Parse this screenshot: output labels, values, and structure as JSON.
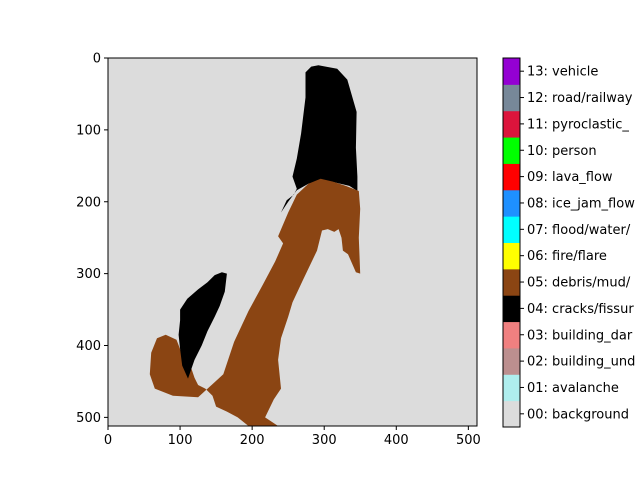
{
  "chart_data": {
    "type": "heatmap",
    "title": "",
    "xlabel": "",
    "ylabel": "",
    "xlim": [
      0,
      512
    ],
    "ylim": [
      512,
      0
    ],
    "x_ticks": [
      "0",
      "100",
      "200",
      "300",
      "400",
      "500"
    ],
    "y_ticks": [
      "0",
      "100",
      "200",
      "300",
      "400",
      "500"
    ],
    "grid": false,
    "colorbar": {
      "placement": "right",
      "classes": [
        {
          "label": "00: background",
          "color": "#DCDCDC"
        },
        {
          "label": "01: avalanche",
          "color": "#AFEEEE"
        },
        {
          "label": "02: building_und",
          "color": "#BC8F8F"
        },
        {
          "label": "03: building_dar",
          "color": "#F08080"
        },
        {
          "label": "04: cracks/fissur",
          "color": "#000000"
        },
        {
          "label": "05: debris/mud/",
          "color": "#8B4513"
        },
        {
          "label": "06: fire/flare",
          "color": "#FFFF00"
        },
        {
          "label": "07: flood/water/",
          "color": "#00FFFF"
        },
        {
          "label": "08: ice_jam_flow",
          "color": "#1E90FF"
        },
        {
          "label": "09: lava_flow",
          "color": "#FF0000"
        },
        {
          "label": "10: person",
          "color": "#00FF00"
        },
        {
          "label": "11: pyroclastic_",
          "color": "#DC143C"
        },
        {
          "label": "12: road/railway",
          "color": "#778899"
        },
        {
          "label": "13: vehicle",
          "color": "#9400D3"
        }
      ]
    },
    "regions": [
      {
        "class": "04: cracks/fissur",
        "polygon": [
          [
            240,
            215
          ],
          [
            248,
            198
          ],
          [
            258,
            190
          ],
          [
            262,
            182
          ],
          [
            256,
            165
          ],
          [
            262,
            140
          ],
          [
            268,
            105
          ],
          [
            274,
            55
          ],
          [
            274,
            20
          ],
          [
            282,
            12
          ],
          [
            292,
            10
          ],
          [
            302,
            12
          ],
          [
            318,
            15
          ],
          [
            332,
            30
          ],
          [
            345,
            75
          ],
          [
            344,
            125
          ],
          [
            346,
            165
          ],
          [
            346,
            185
          ],
          [
            335,
            178
          ],
          [
            310,
            172
          ],
          [
            295,
            170
          ],
          [
            278,
            175
          ],
          [
            262,
            184
          ],
          [
            250,
            200
          ]
        ]
      },
      {
        "class": "05: debris/mud/",
        "polygon": [
          [
            236,
            248
          ],
          [
            250,
            215
          ],
          [
            262,
            190
          ],
          [
            278,
            175
          ],
          [
            295,
            168
          ],
          [
            312,
            172
          ],
          [
            330,
            178
          ],
          [
            348,
            185
          ],
          [
            350,
            210
          ],
          [
            348,
            250
          ],
          [
            350,
            300
          ],
          [
            344,
            298
          ],
          [
            333,
            273
          ],
          [
            326,
            268
          ],
          [
            324,
            250
          ],
          [
            320,
            238
          ],
          [
            314,
            242
          ],
          [
            305,
            238
          ],
          [
            297,
            240
          ],
          [
            290,
            268
          ],
          [
            270,
            310
          ],
          [
            256,
            340
          ],
          [
            250,
            360
          ],
          [
            240,
            390
          ],
          [
            236,
            420
          ],
          [
            240,
            460
          ],
          [
            230,
            475
          ],
          [
            218,
            500
          ],
          [
            236,
            512
          ],
          [
            195,
            512
          ],
          [
            180,
            500
          ],
          [
            165,
            492
          ],
          [
            150,
            485
          ],
          [
            145,
            470
          ],
          [
            135,
            460
          ],
          [
            125,
            455
          ],
          [
            120,
            445
          ],
          [
            115,
            430
          ],
          [
            102,
            410
          ],
          [
            95,
            392
          ],
          [
            80,
            385
          ],
          [
            68,
            390
          ],
          [
            60,
            410
          ],
          [
            58,
            440
          ],
          [
            65,
            460
          ],
          [
            90,
            470
          ],
          [
            125,
            472
          ],
          [
            160,
            440
          ],
          [
            175,
            395
          ],
          [
            195,
            352
          ],
          [
            215,
            315
          ],
          [
            232,
            283
          ],
          [
            243,
            258
          ]
        ]
      },
      {
        "class": "04: cracks/fissur",
        "polygon": [
          [
            100,
            350
          ],
          [
            110,
            335
          ],
          [
            125,
            322
          ],
          [
            138,
            312
          ],
          [
            148,
            302
          ],
          [
            158,
            298
          ],
          [
            165,
            300
          ],
          [
            162,
            325
          ],
          [
            155,
            345
          ],
          [
            148,
            360
          ],
          [
            138,
            380
          ],
          [
            130,
            400
          ],
          [
            120,
            420
          ],
          [
            111,
            446
          ],
          [
            103,
            428
          ],
          [
            100,
            405
          ],
          [
            98,
            385
          ],
          [
            100,
            365
          ]
        ]
      }
    ]
  }
}
